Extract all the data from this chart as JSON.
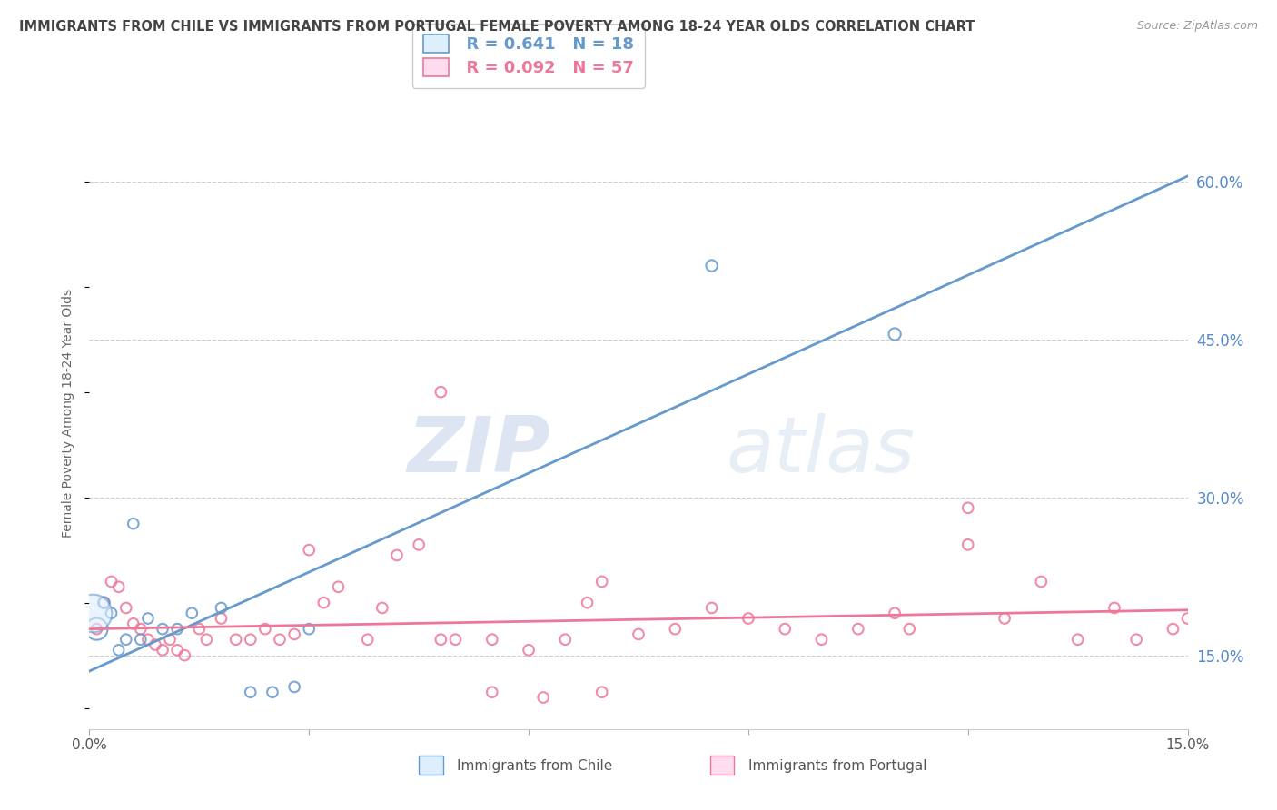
{
  "title": "IMMIGRANTS FROM CHILE VS IMMIGRANTS FROM PORTUGAL FEMALE POVERTY AMONG 18-24 YEAR OLDS CORRELATION CHART",
  "source": "Source: ZipAtlas.com",
  "ylabel": "Female Poverty Among 18-24 Year Olds",
  "xlim": [
    0.0,
    0.15
  ],
  "ylim": [
    0.08,
    0.68
  ],
  "yticks_right": [
    0.15,
    0.3,
    0.45,
    0.6
  ],
  "ytick_right_labels": [
    "15.0%",
    "30.0%",
    "45.0%",
    "60.0%"
  ],
  "chile_color": "#6699cc",
  "portugal_color": "#ee7799",
  "chile_R": 0.641,
  "chile_N": 18,
  "portugal_R": 0.092,
  "portugal_N": 57,
  "chile_scatter_x": [
    0.001,
    0.002,
    0.003,
    0.004,
    0.005,
    0.006,
    0.007,
    0.008,
    0.01,
    0.012,
    0.014,
    0.018,
    0.022,
    0.025,
    0.028,
    0.03,
    0.085,
    0.11
  ],
  "chile_scatter_y": [
    0.175,
    0.2,
    0.19,
    0.155,
    0.165,
    0.275,
    0.165,
    0.185,
    0.175,
    0.175,
    0.19,
    0.195,
    0.115,
    0.115,
    0.12,
    0.175,
    0.52,
    0.455
  ],
  "chile_sizes": [
    300,
    80,
    70,
    70,
    70,
    70,
    70,
    70,
    70,
    70,
    70,
    70,
    70,
    70,
    70,
    70,
    80,
    90
  ],
  "portugal_scatter_x": [
    0.001,
    0.002,
    0.003,
    0.004,
    0.005,
    0.006,
    0.007,
    0.008,
    0.009,
    0.01,
    0.011,
    0.012,
    0.013,
    0.015,
    0.016,
    0.018,
    0.02,
    0.022,
    0.024,
    0.026,
    0.028,
    0.03,
    0.032,
    0.034,
    0.038,
    0.04,
    0.042,
    0.045,
    0.048,
    0.05,
    0.055,
    0.06,
    0.065,
    0.068,
    0.07,
    0.075,
    0.08,
    0.085,
    0.09,
    0.095,
    0.1,
    0.105,
    0.11,
    0.112,
    0.12,
    0.125,
    0.13,
    0.135,
    0.14,
    0.143,
    0.148,
    0.15,
    0.12,
    0.07,
    0.055,
    0.062,
    0.048
  ],
  "portugal_scatter_y": [
    0.175,
    0.2,
    0.22,
    0.215,
    0.195,
    0.18,
    0.175,
    0.165,
    0.16,
    0.155,
    0.165,
    0.155,
    0.15,
    0.175,
    0.165,
    0.185,
    0.165,
    0.165,
    0.175,
    0.165,
    0.17,
    0.25,
    0.2,
    0.215,
    0.165,
    0.195,
    0.245,
    0.255,
    0.165,
    0.165,
    0.165,
    0.155,
    0.165,
    0.2,
    0.22,
    0.17,
    0.175,
    0.195,
    0.185,
    0.175,
    0.165,
    0.175,
    0.19,
    0.175,
    0.29,
    0.185,
    0.22,
    0.165,
    0.195,
    0.165,
    0.175,
    0.185,
    0.255,
    0.115,
    0.115,
    0.11,
    0.4
  ],
  "portugal_sizes": [
    70,
    70,
    70,
    70,
    70,
    70,
    70,
    70,
    70,
    70,
    70,
    70,
    70,
    70,
    70,
    70,
    70,
    70,
    70,
    70,
    70,
    70,
    70,
    70,
    70,
    70,
    70,
    70,
    70,
    70,
    70,
    70,
    70,
    70,
    70,
    70,
    70,
    70,
    70,
    70,
    70,
    70,
    70,
    70,
    70,
    70,
    70,
    70,
    70,
    70,
    70,
    70,
    70,
    70,
    70,
    70,
    70
  ],
  "chile_line_x": [
    0.0,
    0.15
  ],
  "chile_line_y": [
    0.135,
    0.605
  ],
  "portugal_line_x": [
    0.0,
    0.15
  ],
  "portugal_line_y": [
    0.175,
    0.193
  ],
  "watermark_zip": "ZIP",
  "watermark_atlas": "atlas",
  "legend_label_chile": "Immigrants from Chile",
  "legend_label_portugal": "Immigrants from Portugal",
  "background_color": "#ffffff",
  "grid_color": "#cccccc",
  "title_color": "#444444",
  "axis_label_color": "#666666",
  "right_axis_color": "#5588cc"
}
